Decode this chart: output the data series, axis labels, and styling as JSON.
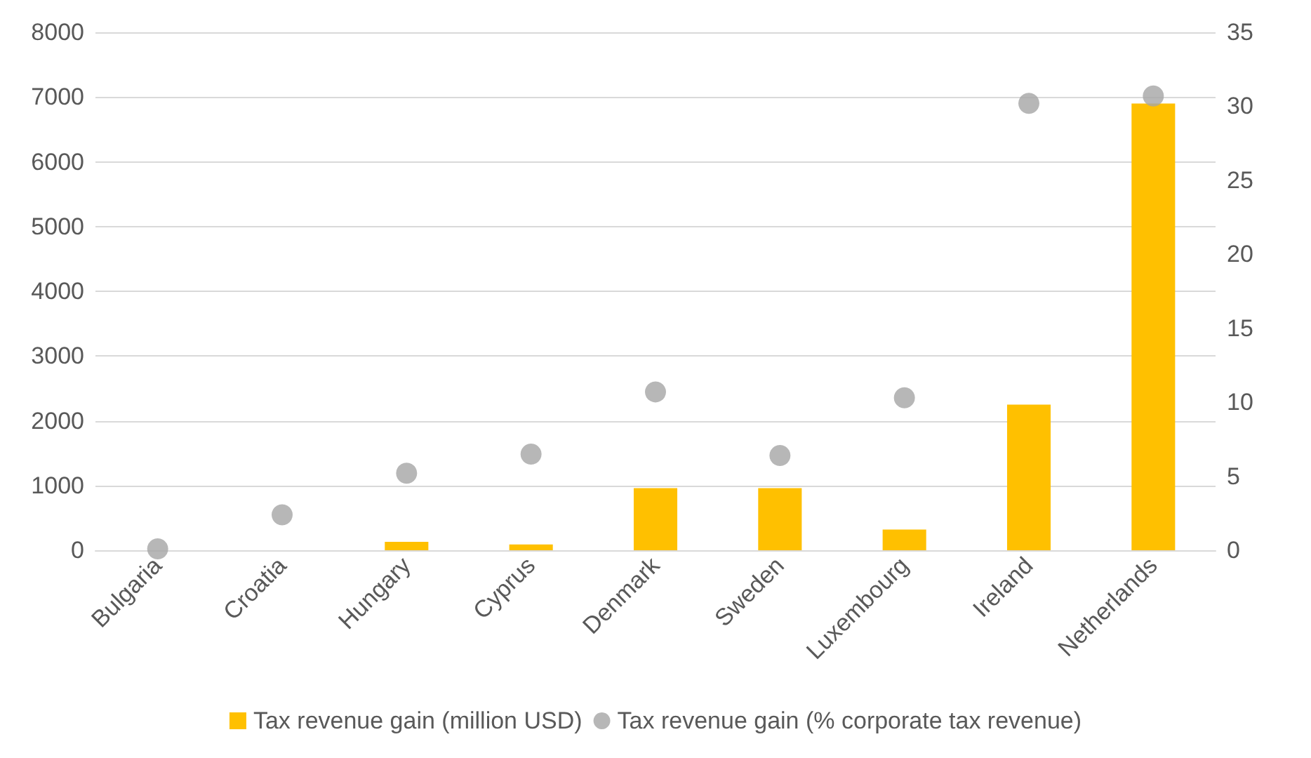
{
  "chart_data": {
    "type": "bar",
    "categories": [
      "Bulgaria",
      "Croatia",
      "Hungary",
      "Cyprus",
      "Denmark",
      "Sweden",
      "Luxembourg",
      "Ireland",
      "Netherlands"
    ],
    "series": [
      {
        "name": "Tax revenue gain (million USD)",
        "color": "#ffc000",
        "values": [
          0,
          0,
          130,
          90,
          960,
          960,
          320,
          2250,
          6900
        ]
      },
      {
        "name": "Tax revenue gain (% corporate tax revenue)",
        "type": "scatter",
        "axis": "y2",
        "color": "#a5a5a5",
        "values": [
          0.1,
          2.4,
          5.2,
          6.5,
          10.7,
          6.4,
          10.3,
          30.2,
          30.7
        ]
      }
    ],
    "ylim": [
      0,
      8000
    ],
    "yticks": [
      0,
      1000,
      2000,
      3000,
      4000,
      5000,
      6000,
      7000,
      8000
    ],
    "y2lim": [
      0,
      35
    ],
    "y2ticks": [
      0,
      5,
      10,
      15,
      20,
      25,
      30,
      35
    ],
    "grid": "y",
    "legend": "bottom",
    "marker": "circle"
  }
}
